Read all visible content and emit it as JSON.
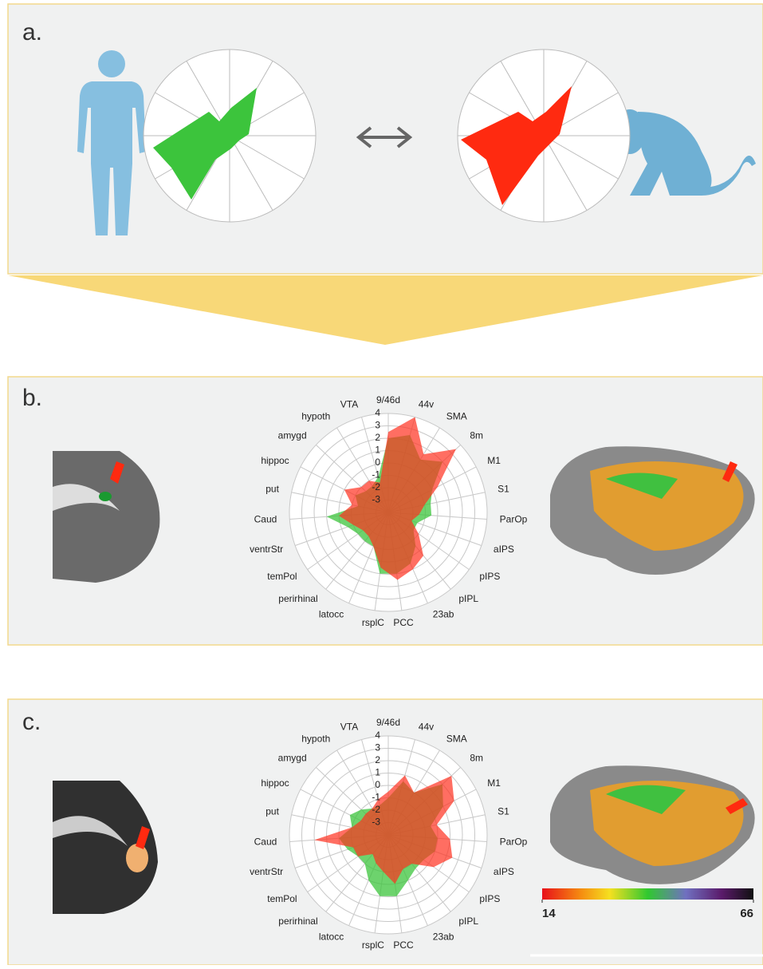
{
  "panels": [
    {
      "label": "a."
    },
    {
      "label": "b."
    },
    {
      "label": "c."
    }
  ],
  "chart_data": [
    {
      "type": "radar",
      "categories": [
        "9/46d",
        "44v",
        "SMA",
        "8m",
        "M1",
        "S1",
        "ParOp",
        "aIPS",
        "pIPS",
        "pIPL",
        "23ab",
        "PCC",
        "rsplC",
        "latocc",
        "perirhinal",
        "temPol",
        "ventrStr",
        "Caud",
        "put",
        "hippoc",
        "amygd",
        "hypoth",
        "VTA"
      ],
      "series": [
        {
          "color": "#3cc43c",
          "values": [
            2,
            2.5,
            1,
            2,
            0,
            -0.5,
            -0.5,
            -1.5,
            -1.5,
            -0.5,
            0.5,
            1,
            1,
            -1,
            -1,
            -1,
            -0.5,
            1,
            -1.5,
            -1,
            -1.5,
            -1.5,
            -1
          ]
        },
        {
          "color": "#ff3020",
          "values": [
            2.5,
            4,
            1.5,
            3.5,
            0.5,
            -1,
            -1.5,
            -2,
            -1,
            0.5,
            1,
            1.5,
            0.5,
            -1,
            -1.5,
            -1.5,
            -1,
            0,
            -1,
            0,
            -1,
            -1,
            -1.5
          ]
        }
      ],
      "rlim": [
        -4,
        4
      ],
      "rticks": [
        -3,
        -2,
        -1,
        0,
        1,
        2,
        3,
        4
      ]
    },
    {
      "type": "radar",
      "categories": [
        "9/46d",
        "44v",
        "SMA",
        "8m",
        "M1",
        "S1",
        "ParOp",
        "aIPS",
        "pIPS",
        "pIPL",
        "23ab",
        "PCC",
        "rsplC",
        "latocc",
        "perirhinal",
        "temPol",
        "ventrStr",
        "Caud",
        "put",
        "hippoc",
        "amygd",
        "hypoth",
        "VTA"
      ],
      "series": [
        {
          "color": "#3cc43c",
          "values": [
            -1,
            0.5,
            0,
            2,
            1,
            -0.5,
            0,
            0,
            -0.5,
            -0.5,
            0,
            1,
            1,
            0,
            -1,
            -1,
            -0.5,
            0,
            -1,
            -0.5,
            -1,
            -1.5,
            -1.5
          ]
        },
        {
          "color": "#ff3020",
          "values": [
            -0.5,
            1,
            0,
            3,
            2,
            0,
            1,
            1.5,
            0.5,
            -1,
            -1,
            0,
            -1,
            -1.5,
            -2,
            -1,
            -1,
            2,
            -1,
            -1.5,
            -1.5,
            -1.5,
            -1
          ]
        }
      ],
      "rlim": [
        -4,
        4
      ],
      "rticks": [
        -3,
        -2,
        -1,
        0,
        1,
        2,
        3,
        4
      ]
    }
  ],
  "colorbar": {
    "lim": [
      14,
      66
    ],
    "ticks": [
      14,
      66
    ]
  }
}
